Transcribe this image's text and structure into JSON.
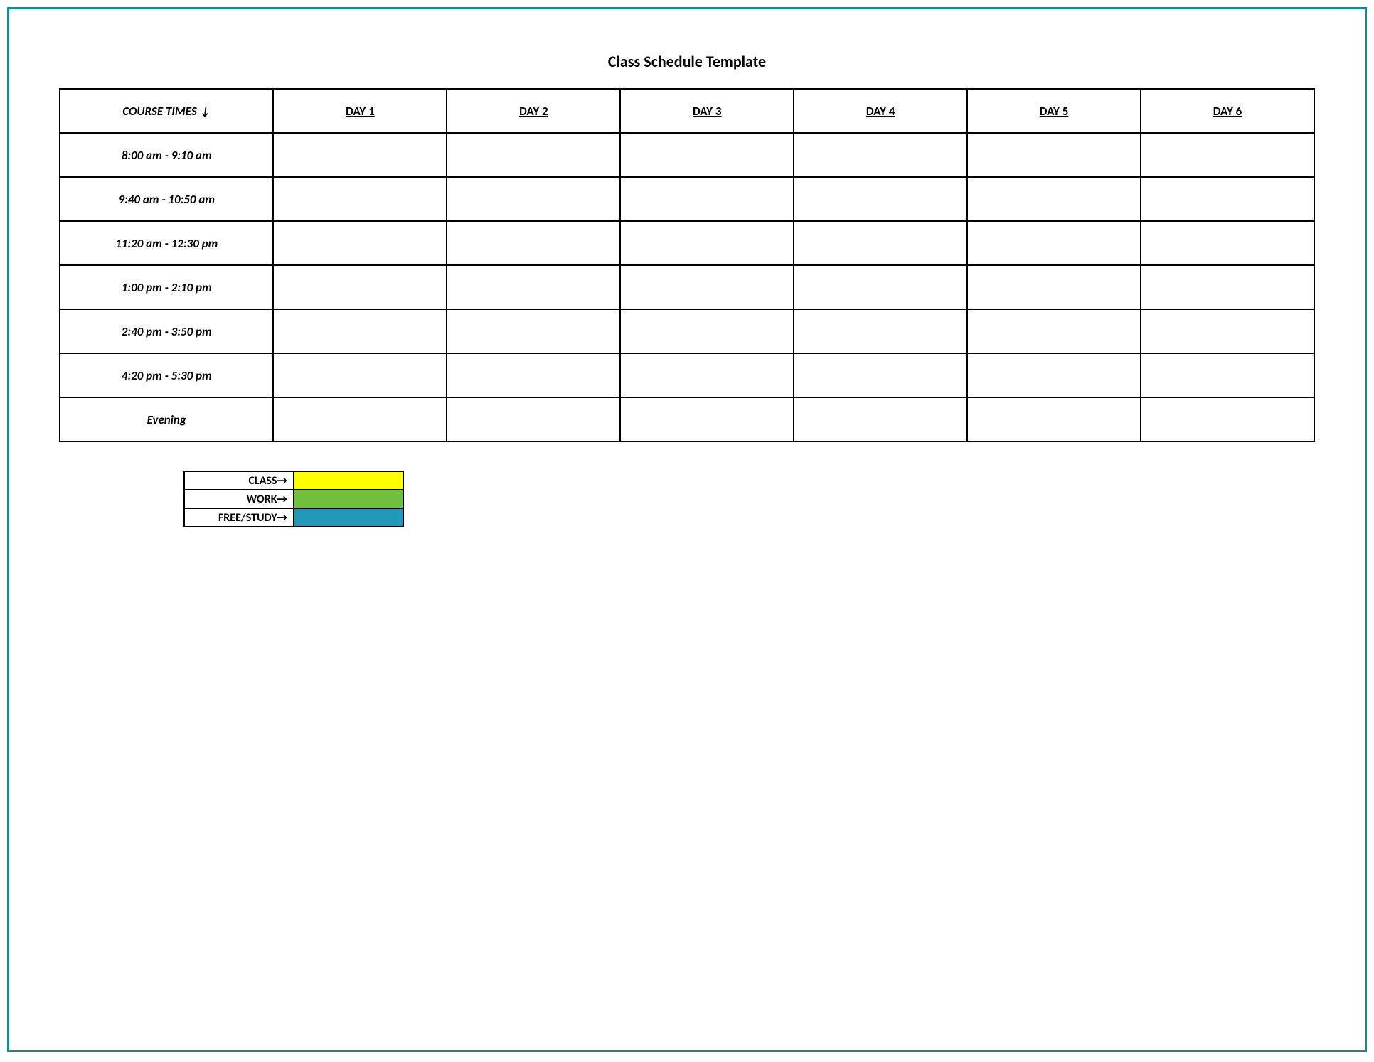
{
  "title": "Class Schedule Template",
  "schedule": {
    "header_times_label": "COURSE TIMES",
    "day_headers": [
      "DAY 1",
      "DAY 2",
      "DAY 3",
      "DAY 4",
      "DAY 5",
      "DAY 6"
    ],
    "time_rows": [
      "8:00 am - 9:10 am",
      "9:40 am - 10:50 am",
      "11:20 am - 12:30 pm",
      "1:00 pm - 2:10 pm",
      "2:40 pm - 3:50 pm",
      "4:20 pm - 5:30 pm",
      "Evening"
    ],
    "cells": [
      [
        "",
        "",
        "",
        "",
        "",
        ""
      ],
      [
        "",
        "",
        "",
        "",
        "",
        ""
      ],
      [
        "",
        "",
        "",
        "",
        "",
        ""
      ],
      [
        "",
        "",
        "",
        "",
        "",
        ""
      ],
      [
        "",
        "",
        "",
        "",
        "",
        ""
      ],
      [
        "",
        "",
        "",
        "",
        "",
        ""
      ],
      [
        "",
        "",
        "",
        "",
        "",
        ""
      ]
    ],
    "border_color": "#000000",
    "background_color": "#ffffff"
  },
  "legend": {
    "items": [
      {
        "label": "CLASS",
        "color": "#ffff00"
      },
      {
        "label": "WORK",
        "color": "#70c040"
      },
      {
        "label": "FREE/STUDY",
        "color": "#2099b8"
      }
    ]
  },
  "frame_border_color": "#1a8a8a"
}
